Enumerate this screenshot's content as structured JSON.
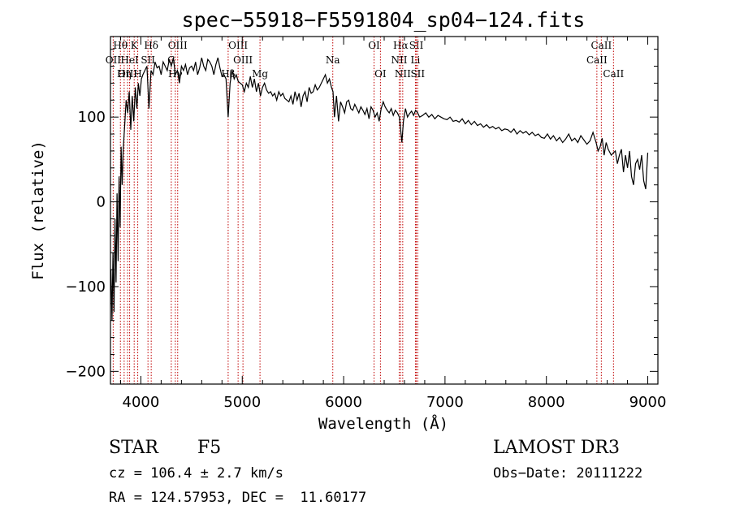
{
  "chart_data": {
    "type": "line",
    "title": "spec−55918−F5591804_sp04−124.fits",
    "xlabel": "Wavelength (Å)",
    "ylabel": "Flux (relative)",
    "xlim": [
      3700,
      9100
    ],
    "ylim": [
      -215,
      195
    ],
    "xticks": [
      4000,
      5000,
      6000,
      7000,
      8000,
      9000
    ],
    "xtick_labels": [
      "4000",
      "5000",
      "6000",
      "7000",
      "8000",
      "9000"
    ],
    "yticks": [
      -200,
      -100,
      0,
      100
    ],
    "ytick_labels": [
      "−200",
      "−100",
      "0",
      "100"
    ],
    "line_color": "#000000",
    "marker_color": "#c00000",
    "series": [
      {
        "name": "flux",
        "x": [
          3705,
          3715,
          3725,
          3735,
          3745,
          3755,
          3765,
          3775,
          3785,
          3795,
          3805,
          3815,
          3825,
          3840,
          3855,
          3870,
          3885,
          3900,
          3915,
          3930,
          3945,
          3960,
          3975,
          3990,
          4005,
          4020,
          4040,
          4060,
          4080,
          4100,
          4120,
          4140,
          4160,
          4180,
          4200,
          4220,
          4240,
          4260,
          4280,
          4300,
          4320,
          4340,
          4360,
          4380,
          4400,
          4420,
          4440,
          4460,
          4480,
          4500,
          4520,
          4540,
          4560,
          4580,
          4600,
          4620,
          4640,
          4660,
          4680,
          4700,
          4720,
          4740,
          4760,
          4780,
          4800,
          4820,
          4840,
          4861,
          4880,
          4900,
          4920,
          4940,
          4960,
          4980,
          5000,
          5020,
          5040,
          5060,
          5080,
          5100,
          5120,
          5140,
          5160,
          5180,
          5200,
          5220,
          5240,
          5260,
          5280,
          5300,
          5320,
          5340,
          5360,
          5380,
          5400,
          5420,
          5440,
          5460,
          5480,
          5500,
          5520,
          5540,
          5560,
          5580,
          5600,
          5620,
          5640,
          5660,
          5680,
          5700,
          5720,
          5740,
          5760,
          5780,
          5800,
          5820,
          5840,
          5860,
          5880,
          5895,
          5910,
          5930,
          5950,
          5970,
          5990,
          6010,
          6030,
          6050,
          6070,
          6090,
          6110,
          6130,
          6150,
          6170,
          6190,
          6210,
          6230,
          6250,
          6270,
          6290,
          6310,
          6330,
          6350,
          6370,
          6390,
          6410,
          6430,
          6450,
          6470,
          6490,
          6510,
          6530,
          6550,
          6563,
          6575,
          6590,
          6610,
          6630,
          6650,
          6670,
          6690,
          6710,
          6730,
          6750,
          6780,
          6810,
          6840,
          6870,
          6900,
          6930,
          6960,
          6990,
          7020,
          7050,
          7080,
          7110,
          7140,
          7170,
          7200,
          7230,
          7260,
          7290,
          7320,
          7350,
          7380,
          7410,
          7440,
          7470,
          7500,
          7530,
          7560,
          7590,
          7620,
          7650,
          7680,
          7710,
          7740,
          7770,
          7800,
          7830,
          7860,
          7890,
          7920,
          7950,
          7980,
          8010,
          8040,
          8070,
          8100,
          8130,
          8160,
          8190,
          8220,
          8250,
          8280,
          8310,
          8340,
          8370,
          8400,
          8430,
          8460,
          8490,
          8510,
          8530,
          8550,
          8570,
          8590,
          8610,
          8640,
          8662,
          8680,
          8700,
          8720,
          8740,
          8760,
          8780,
          8800,
          8820,
          8840,
          8860,
          8880,
          8900,
          8920,
          8940,
          8960,
          8980,
          8995,
          9000
        ],
        "y": [
          -80,
          -140,
          -60,
          -130,
          -20,
          -95,
          10,
          -70,
          30,
          -30,
          65,
          20,
          60,
          90,
          120,
          105,
          130,
          85,
          125,
          95,
          135,
          110,
          140,
          125,
          145,
          150,
          155,
          160,
          110,
          155,
          150,
          165,
          158,
          160,
          150,
          165,
          160,
          155,
          168,
          160,
          170,
          150,
          155,
          140,
          160,
          155,
          162,
          150,
          158,
          160,
          155,
          165,
          150,
          158,
          170,
          160,
          155,
          168,
          165,
          160,
          150,
          162,
          170,
          158,
          148,
          150,
          145,
          100,
          140,
          155,
          145,
          150,
          142,
          140,
          138,
          130,
          140,
          135,
          148,
          135,
          145,
          130,
          140,
          125,
          135,
          140,
          132,
          128,
          130,
          125,
          128,
          120,
          130,
          125,
          128,
          122,
          120,
          118,
          125,
          115,
          130,
          120,
          128,
          112,
          125,
          130,
          118,
          135,
          128,
          130,
          138,
          132,
          135,
          140,
          145,
          150,
          140,
          145,
          135,
          130,
          100,
          125,
          95,
          118,
          112,
          105,
          118,
          120,
          110,
          108,
          115,
          110,
          105,
          112,
          108,
          103,
          110,
          98,
          112,
          108,
          100,
          105,
          95,
          110,
          118,
          112,
          108,
          105,
          110,
          102,
          108,
          105,
          100,
          85,
          70,
          95,
          110,
          100,
          104,
          107,
          102,
          108,
          105,
          100,
          102,
          105,
          100,
          103,
          98,
          102,
          100,
          98,
          97,
          100,
          95,
          96,
          94,
          98,
          92,
          96,
          91,
          95,
          90,
          92,
          88,
          91,
          87,
          89,
          86,
          88,
          84,
          86,
          85,
          82,
          86,
          80,
          84,
          81,
          83,
          79,
          82,
          78,
          80,
          76,
          75,
          80,
          74,
          78,
          72,
          76,
          70,
          74,
          80,
          72,
          75,
          70,
          78,
          73,
          68,
          72,
          82,
          70,
          60,
          65,
          75,
          55,
          70,
          62,
          55,
          58,
          60,
          45,
          55,
          62,
          35,
          55,
          40,
          60,
          30,
          20,
          45,
          50,
          38,
          55,
          25,
          15,
          48,
          58
        ]
      }
    ],
    "lines": [
      {
        "label": "Hθ",
        "x": 3798,
        "row": 0
      },
      {
        "label": "OII",
        "x": 3727,
        "row": 1
      },
      {
        "label": "OIII",
        "x": 3869,
        "row": 2
      },
      {
        "label": "Hη",
        "x": 3835,
        "row": 2
      },
      {
        "label": "K",
        "x": 3934,
        "row": 0
      },
      {
        "label": "H",
        "x": 3969,
        "row": 2
      },
      {
        "label": "HeI",
        "x": 3889,
        "row": 1
      },
      {
        "label": "SII",
        "x": 4070,
        "row": 1
      },
      {
        "label": "Hδ",
        "x": 4102,
        "row": 0
      },
      {
        "label": "G",
        "x": 4300,
        "row": 1
      },
      {
        "label": "OIII",
        "x": 4363,
        "row": 0
      },
      {
        "label": "Hγ",
        "x": 4340,
        "row": 2
      },
      {
        "label": "Hβ",
        "x": 4861,
        "row": 2
      },
      {
        "label": "OIII",
        "x": 4959,
        "row": 0
      },
      {
        "label": "OIII",
        "x": 5007,
        "row": 1
      },
      {
        "label": "Mg",
        "x": 5175,
        "row": 2
      },
      {
        "label": "Na",
        "x": 5893,
        "row": 1
      },
      {
        "label": "OI",
        "x": 6300,
        "row": 0
      },
      {
        "label": "OI",
        "x": 6363,
        "row": 2
      },
      {
        "label": "Hα",
        "x": 6563,
        "row": 0
      },
      {
        "label": "NII",
        "x": 6548,
        "row": 1
      },
      {
        "label": "NII",
        "x": 6583,
        "row": 2
      },
      {
        "label": "SII",
        "x": 6717,
        "row": 0
      },
      {
        "label": "Li",
        "x": 6708,
        "row": 1
      },
      {
        "label": "SII",
        "x": 6731,
        "row": 2
      },
      {
        "label": "CaII",
        "x": 8542,
        "row": 0
      },
      {
        "label": "CaII",
        "x": 8498,
        "row": 1
      },
      {
        "label": "CaII",
        "x": 8662,
        "row": 2
      }
    ]
  },
  "info": {
    "object_class": "STAR",
    "subclass": "F5",
    "survey": "LAMOST DR3",
    "redshift": "cz = 106.4 ± 2.7 km/s",
    "obs_date": "Obs−Date: 20111222",
    "coords": "RA = 124.57953, DEC =  11.60177"
  }
}
